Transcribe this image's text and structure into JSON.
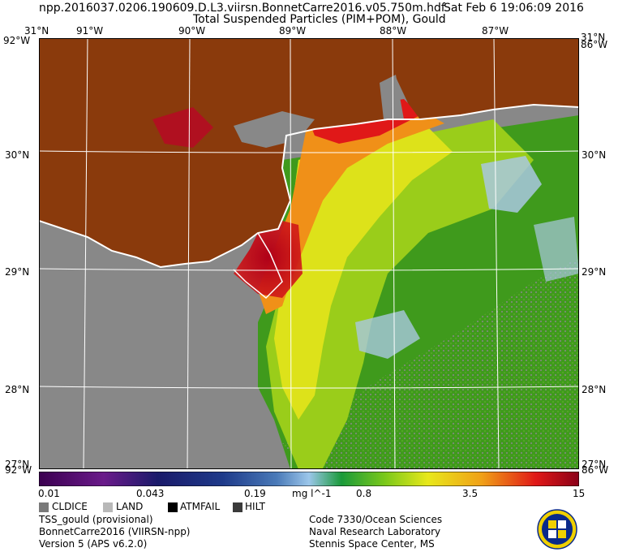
{
  "header": {
    "filename": "npp.2016037.0206.190609.D.L3.viirsn.BonnetCarre2016.v05.750m.hdf",
    "product_title": "Total Suspended Particles (PIM+POM), Gould",
    "timestamp": "Sat Feb  6 19:06:09 2016"
  },
  "map": {
    "lon_ticks": [
      "91°W",
      "90°W",
      "89°W",
      "88°W",
      "87°W"
    ],
    "lat_ticks": [
      "30°N",
      "29°N",
      "28°N"
    ],
    "corner_top_left_lat": "31°N",
    "corner_top_left_lon": "92°W",
    "corner_top_right_lat": "31°N",
    "corner_top_right_lon": "86°W",
    "corner_bottom_left_lat": "27°N",
    "corner_bottom_left_lon": "92°W",
    "corner_bottom_right_lat": "27°N",
    "corner_bottom_right_lon": "86°W",
    "land_color": "#8a3a0c",
    "nodata_color": "#888888"
  },
  "colorbar": {
    "min_label": "0.01",
    "labels": [
      "0.043",
      "0.19",
      "0.8",
      "3.5"
    ],
    "max_label": "15",
    "units": "mg l^-1",
    "scale": "log"
  },
  "legend": {
    "items": [
      {
        "label": "CLDICE",
        "color": "#7a7a7a"
      },
      {
        "label": "LAND",
        "color": "#b8b8b8"
      },
      {
        "label": "ATMFAIL",
        "color": "#000000"
      },
      {
        "label": "HILT",
        "color": "#3a3a3a"
      }
    ]
  },
  "info_left": {
    "line1": "TSS_gould (provisional)",
    "line2": "BonnetCarre2016 (VIIRSN-npp)",
    "line3": "Version 5 (APS v6.2.0)"
  },
  "info_right": {
    "line1": "Code 7330/Ocean Sciences",
    "line2": "Naval Research Laboratory",
    "line3": "Stennis Space Center, MS"
  },
  "logo": {
    "icon": "nrl-seal-icon"
  }
}
